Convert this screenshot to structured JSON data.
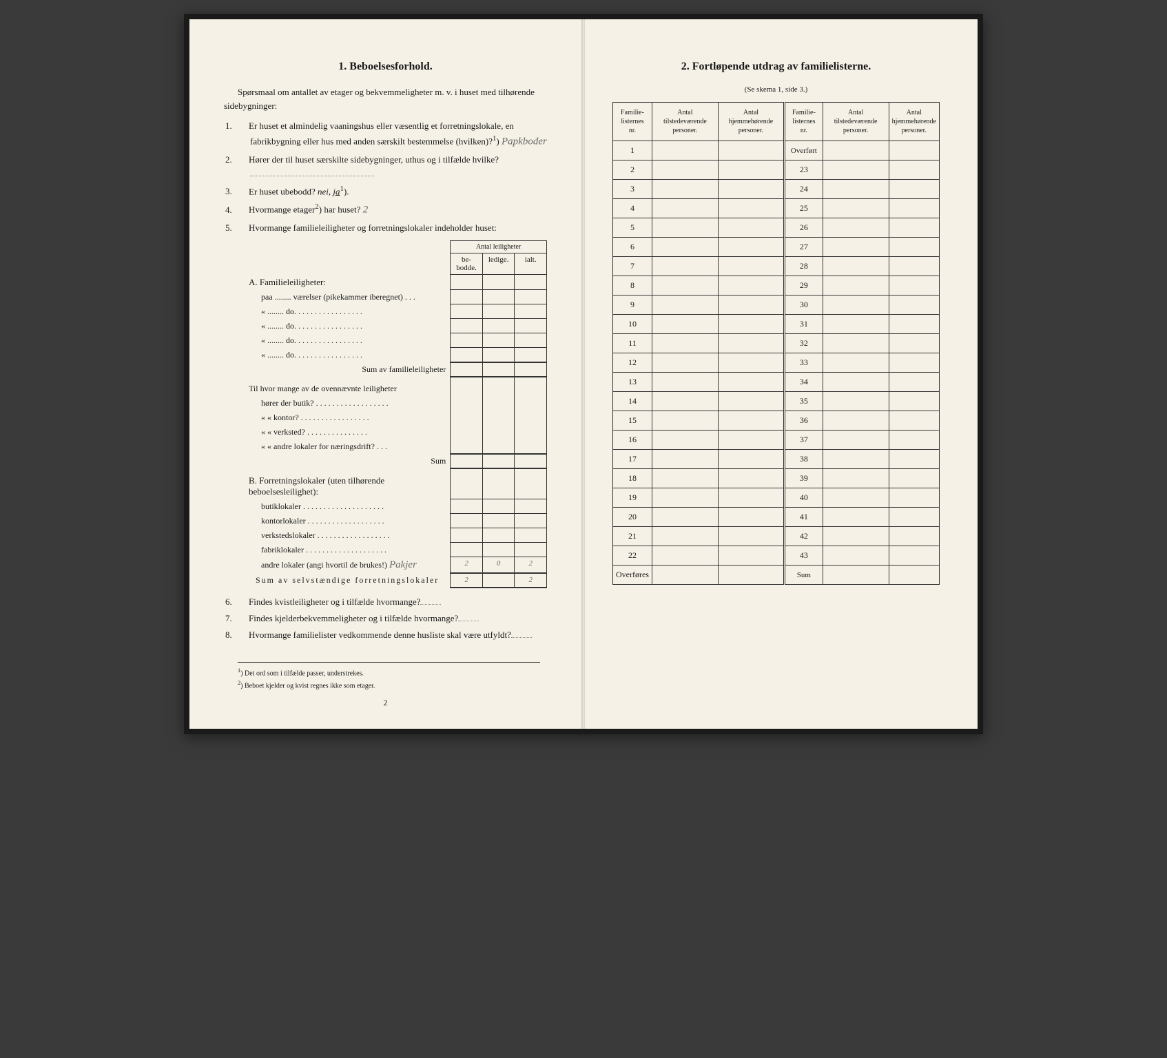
{
  "left": {
    "title": "1.   Beboelsesforhold.",
    "intro": "Spørsmaal om antallet av etager og bekvemmeligheter m. v. i huset med tilhørende sidebygninger:",
    "q1": "Er huset et almindelig vaaningshus eller væsentlig et forretningslokale, en fabrikbygning eller hus med anden særskilt bestemmelse (hvilken)?",
    "q1_sup": "1",
    "q1_hand": "Papkboder",
    "q2": "Hører der til huset særskilte sidebygninger, uthus og i tilfælde hvilke?",
    "q3a": "Er huset ubebodd?  ",
    "q3_nei": "nei,",
    "q3_ja": "ja",
    "q3_sup": "1",
    "q4a": "Hvormange etager",
    "q4_sup": "2",
    "q4b": ") har huset?",
    "q4_hand": "2",
    "q5": "Hvormange familieleiligheter og forretningslokaler indeholder huset:",
    "tbl_header": "Antal leiligheter",
    "col_bebodde": "be-\nbodde.",
    "col_ledige": "ledige.",
    "col_ialt": "ialt.",
    "secA": "A. Familieleiligheter:",
    "rowA1": "paa ........ værelser (pikekammer iberegnet) . . .",
    "rowA_do": "«  ........      do.      . . . . . . . . . . . . . . . .",
    "sumA": "Sum av familieleiligheter",
    "midQ": "Til hvor mange av de ovennævnte leiligheter",
    "mid1": "hører der butik? . . . . . . . . . . . . . . . . . .",
    "mid2": "«     « kontor? . . . . . . . . . . . . . . . . .",
    "mid3": "«     « verksted? . . . . . . . . . . . . . . .",
    "mid4": "«     « andre lokaler for næringsdrift?  . . .",
    "midSum": "Sum",
    "secB": "B. Forretningslokaler (uten tilhørende beboelsesleilighet):",
    "rowB1": "butiklokaler . . . . . . . . . . . . . . . . . . . .",
    "rowB2": "kontorlokaler  . . . . . . . . . . . . . . . . . . .",
    "rowB3": "verkstedslokaler . . . . . . . . . . . . . . . . . .",
    "rowB4": "fabriklokaler . . . . . . . . . . . . . . . . . . . .",
    "rowB5": "andre lokaler (angi hvortil de brukes!)",
    "rowB5_hand_label": "Pakjer",
    "rowB5_v1": "2",
    "rowB5_v2": "0",
    "rowB5_v3": "2",
    "sumB": "Sum av selvstændige forretningslokaler",
    "sumB_v1": "2",
    "sumB_v3": "2",
    "q6": "Findes kvistleiligheter og i tilfælde hvormange?",
    "q7": "Findes kjelderbekvemmeligheter og i tilfælde hvormange?",
    "q8": "Hvormange familielister vedkommende denne husliste skal være utfyldt?",
    "fn1": "Det ord som i tilfælde passer, understrekes.",
    "fn2": "Beboet kjelder og kvist regnes ikke som etager.",
    "pagenum": "2"
  },
  "right": {
    "title": "2.   Fortløpende utdrag av familielisterne.",
    "subtitle": "(Se skema 1, side 3.)",
    "col1": "Familie-\nlisternes\nnr.",
    "col2": "Antal\ntilstedeværende\npersoner.",
    "col3": "Antal\nhjemmehørende\npersoner.",
    "overfort": "Overført",
    "overfores": "Overføres",
    "sum": "Sum",
    "rows_left": [
      "1",
      "2",
      "3",
      "4",
      "5",
      "6",
      "7",
      "8",
      "9",
      "10",
      "11",
      "12",
      "13",
      "14",
      "15",
      "16",
      "17",
      "18",
      "19",
      "20",
      "21",
      "22"
    ],
    "rows_right": [
      "23",
      "24",
      "25",
      "26",
      "27",
      "28",
      "29",
      "30",
      "31",
      "32",
      "33",
      "34",
      "35",
      "36",
      "37",
      "38",
      "39",
      "40",
      "41",
      "42",
      "43"
    ]
  },
  "colors": {
    "paper": "#f5f1e6",
    "ink": "#1a1a1a",
    "pencil": "#6a6a6a",
    "bg": "#3a3a3a"
  }
}
